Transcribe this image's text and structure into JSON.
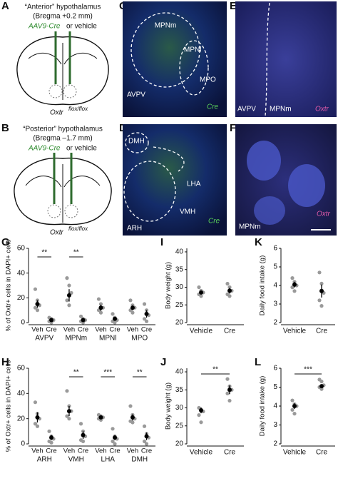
{
  "panel_labels": [
    "A",
    "B",
    "C",
    "D",
    "E",
    "F",
    "G",
    "H",
    "I",
    "J",
    "K",
    "L"
  ],
  "diagram_a": {
    "title": "“Anterior” hypothalamus",
    "subtitle": "(Bregma +0.2 mm)",
    "virus": "AAV9-Cre",
    "virus_suffix": "or vehicle",
    "genotype": "Oxtr",
    "genotype_sup": "flox/flox"
  },
  "diagram_b": {
    "title": "“Posterior” hypothalamus",
    "subtitle": "(Bregma –1.7 mm)",
    "virus": "AAV9-Cre",
    "virus_suffix": "or vehicle",
    "genotype": "Oxtr",
    "genotype_sup": "flox/flox"
  },
  "image_c": {
    "regions": [
      "MPNm",
      "MPNl",
      "MPO",
      "AVPV"
    ],
    "stain": "Cre"
  },
  "image_d": {
    "regions": [
      "DMH",
      "LHA",
      "VMH",
      "ARH"
    ],
    "stain": "Cre"
  },
  "image_e": {
    "regions": [
      "AVPV",
      "MPNm"
    ],
    "stain": "Oxtr"
  },
  "image_f": {
    "regions": [
      "MPNm"
    ],
    "stain": "Oxtr"
  },
  "chart_data": [
    {
      "type": "grouped-dot",
      "y_label": "% of Oxtr+ cells in DAPI+ cells",
      "categories": [
        "AVPV",
        "MPNm",
        "MPNl",
        "MPO"
      ],
      "ylim": [
        0,
        60
      ],
      "yticks": [
        0,
        20,
        40,
        60
      ],
      "significance": [
        "**",
        "**",
        null,
        null
      ],
      "series": [
        {
          "name": "Veh",
          "color": "#9a9a9a",
          "values": [
            15,
            22,
            12,
            12
          ],
          "errors": [
            3,
            5,
            2.5,
            2
          ],
          "points": [
            [
              27,
              18,
              14,
              12,
              10
            ],
            [
              36,
              30,
              24,
              18,
              14
            ],
            [
              19,
              15,
              12,
              10,
              8
            ],
            [
              18,
              14,
              12,
              10,
              8
            ]
          ]
        },
        {
          "name": "Cre",
          "color": "#9a9a9a",
          "values": [
            2,
            2,
            3,
            7
          ],
          "errors": [
            1,
            1,
            1.5,
            3
          ],
          "points": [
            [
              4,
              3,
              2,
              1,
              0
            ],
            [
              5,
              3,
              2,
              1,
              0
            ],
            [
              7,
              4,
              2,
              1,
              0
            ],
            [
              15,
              10,
              6,
              3,
              1
            ]
          ]
        }
      ]
    },
    {
      "type": "grouped-dot",
      "y_label": "% of Oxtr+ cells in DAPI+ cells",
      "categories": [
        "ARH",
        "VMH",
        "LHA",
        "DMH"
      ],
      "ylim": [
        0,
        60
      ],
      "yticks": [
        0,
        20,
        40,
        60
      ],
      "significance": [
        null,
        "**",
        "***",
        "**"
      ],
      "series": [
        {
          "name": "Veh",
          "color": "#9a9a9a",
          "values": [
            21,
            26,
            21,
            21
          ],
          "errors": [
            4,
            4,
            1,
            2.5
          ],
          "points": [
            [
              33,
              24,
              20,
              16,
              14
            ],
            [
              42,
              30,
              26,
              22,
              20
            ],
            [
              23,
              22,
              21,
              20,
              19
            ],
            [
              30,
              23,
              20,
              18,
              17
            ]
          ]
        },
        {
          "name": "Cre",
          "color": "#9a9a9a",
          "values": [
            5,
            7,
            5,
            6
          ],
          "errors": [
            2,
            3,
            2,
            3
          ],
          "points": [
            [
              10,
              6,
              4,
              2,
              1
            ],
            [
              16,
              10,
              6,
              3,
              2
            ],
            [
              12,
              6,
              4,
              2,
              0
            ],
            [
              14,
              8,
              5,
              2,
              0
            ]
          ]
        }
      ]
    },
    {
      "type": "dot",
      "y_label": "Body weight (g)",
      "categories": [
        "Vehicle",
        "Cre"
      ],
      "ylim": [
        20,
        41
      ],
      "yticks": [
        20,
        25,
        30,
        35,
        40
      ],
      "significance": null,
      "series": [
        {
          "color": "#9a9a9a",
          "values": [
            28.5,
            29
          ],
          "errors": [
            0.5,
            0.8
          ],
          "points": [
            [
              30,
              29,
              28.5,
              28,
              27.5
            ],
            [
              31,
              30,
              29,
              28,
              27.5
            ]
          ]
        }
      ]
    },
    {
      "type": "dot",
      "y_label": "Body weight (g)",
      "categories": [
        "Vehicle",
        "Cre"
      ],
      "ylim": [
        20,
        41
      ],
      "yticks": [
        20,
        25,
        30,
        35,
        40
      ],
      "significance": "**",
      "series": [
        {
          "color": "#9a9a9a",
          "values": [
            29.3,
            35
          ],
          "errors": [
            0.8,
            1.2
          ],
          "points": [
            [
              30,
              29.5,
              29,
              28,
              26
            ],
            [
              38,
              36,
              35,
              34,
              32
            ]
          ]
        }
      ]
    },
    {
      "type": "dot",
      "y_label": "Daily food intake (g)",
      "categories": [
        "Vehicle",
        "Cre"
      ],
      "ylim": [
        2,
        6
      ],
      "yticks": [
        2,
        3,
        4,
        5,
        6
      ],
      "significance": null,
      "series": [
        {
          "color": "#9a9a9a",
          "values": [
            4.05,
            3.7
          ],
          "errors": [
            0.15,
            0.35
          ],
          "points": [
            [
              4.4,
              4.2,
              4.0,
              3.9,
              3.7
            ],
            [
              4.7,
              4.1,
              3.6,
              3.2,
              2.9
            ]
          ]
        }
      ]
    },
    {
      "type": "dot",
      "y_label": "Daily food intake (g)",
      "categories": [
        "Vehicle",
        "Cre"
      ],
      "ylim": [
        2,
        6
      ],
      "yticks": [
        2,
        3,
        4,
        5,
        6
      ],
      "significance": "***",
      "series": [
        {
          "color": "#9a9a9a",
          "values": [
            4.0,
            5.05
          ],
          "errors": [
            0.15,
            0.1
          ],
          "points": [
            [
              4.3,
              4.1,
              4.0,
              3.8,
              3.6
            ],
            [
              5.4,
              5.3,
              5.1,
              5.0,
              4.9
            ]
          ]
        }
      ]
    }
  ]
}
